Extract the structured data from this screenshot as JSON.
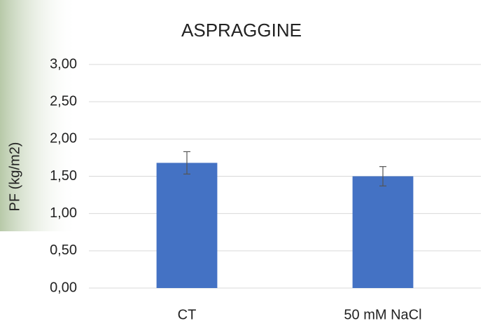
{
  "chart_data": {
    "type": "bar",
    "title": "ASPRAGGINE",
    "y_label": "PF (kg/m2)",
    "categories": [
      "CT",
      "50 mM NaCl"
    ],
    "values": [
      1.68,
      1.5
    ],
    "errors": [
      0.15,
      0.13
    ],
    "color": "#4472c4",
    "ylim": [
      0,
      3
    ],
    "yticks": [
      {
        "value": 0,
        "label": "0,00"
      },
      {
        "value": 0.5,
        "label": "0,50"
      },
      {
        "value": 1,
        "label": "1,00"
      },
      {
        "value": 1.5,
        "label": "1,50"
      },
      {
        "value": 2,
        "label": "2,00"
      },
      {
        "value": 2.5,
        "label": "2,50"
      },
      {
        "value": 3,
        "label": "3,00"
      }
    ],
    "grid": true
  }
}
